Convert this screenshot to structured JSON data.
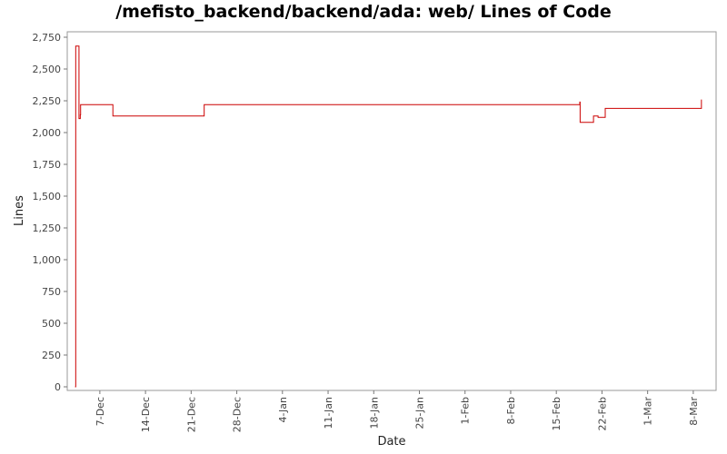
{
  "chart_data": {
    "type": "line",
    "title": "/mefisto_backend/backend/ada: web/ Lines of Code",
    "xlabel": "Date",
    "ylabel": "Lines",
    "ylim": [
      0,
      2800
    ],
    "y_ticks": [
      0,
      250,
      500,
      750,
      1000,
      1250,
      1500,
      1750,
      2000,
      2250,
      2500,
      2750
    ],
    "y_tick_labels": [
      "0",
      "250",
      "500",
      "750",
      "1,000",
      "1,250",
      "1,500",
      "1,750",
      "2,000",
      "2,250",
      "2,500",
      "2,750"
    ],
    "x_ticks": [
      7,
      14,
      21,
      28,
      35,
      42,
      49,
      56,
      63,
      70,
      77,
      84,
      91,
      98
    ],
    "x_tick_labels": [
      "7-Dec",
      "14-Dec",
      "21-Dec",
      "28-Dec",
      "4-Jan",
      "11-Jan",
      "18-Jan",
      "25-Jan",
      "1-Feb",
      "8-Feb",
      "15-Feb",
      "22-Feb",
      "1-Mar",
      "8-Mar"
    ],
    "xlim": [
      2.0,
      101.5
    ],
    "grid": false,
    "line_color": "#cc0000",
    "series": [
      {
        "step": true,
        "x": [
          3.2,
          3.3,
          3.75,
          3.8,
          4.0,
          4.05,
          9.0,
          23.0,
          80.6,
          80.65,
          82.7,
          83.4,
          84.5,
          99.2,
          99.25
        ],
        "y": [
          0,
          2680,
          2680,
          2110,
          2140,
          2220,
          2130,
          2220,
          2240,
          2080,
          2130,
          2120,
          2190,
          2190,
          2260
        ]
      }
    ]
  }
}
